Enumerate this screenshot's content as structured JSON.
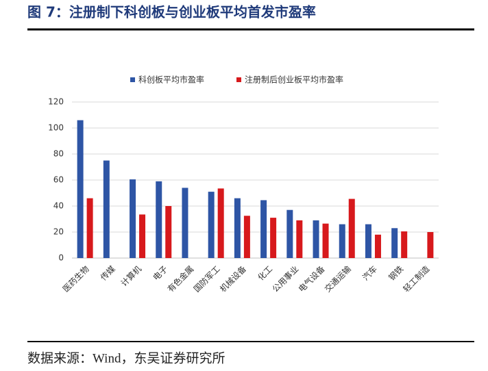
{
  "header": {
    "title": "图 7：注册制下科创板与创业板平均首发市盈率"
  },
  "chart_data": {
    "type": "bar",
    "categories": [
      "医药生物",
      "传媒",
      "计算机",
      "电子",
      "有色金属",
      "国防军工",
      "机械设备",
      "化工",
      "公用事业",
      "电气设备",
      "交通运输",
      "汽车",
      "钢铁",
      "轻工制造"
    ],
    "series": [
      {
        "name": "科创板平均市盈率",
        "color": "#2e55a5",
        "values": [
          106,
          75,
          60.5,
          59,
          54,
          51,
          46,
          44.5,
          37,
          29,
          26,
          26,
          23,
          null
        ]
      },
      {
        "name": "注册制后创业板平均市盈率",
        "color": "#d7191c",
        "values": [
          46,
          null,
          33.5,
          40,
          null,
          53.5,
          32.5,
          31,
          29,
          26.5,
          45.5,
          18,
          20.5,
          20
        ]
      }
    ],
    "ylim": [
      0,
      120
    ],
    "yticks": [
      0,
      20,
      40,
      60,
      80,
      100,
      120
    ],
    "grid": true
  },
  "footer": {
    "source": "数据来源：Wind，东吴证券研究所"
  }
}
